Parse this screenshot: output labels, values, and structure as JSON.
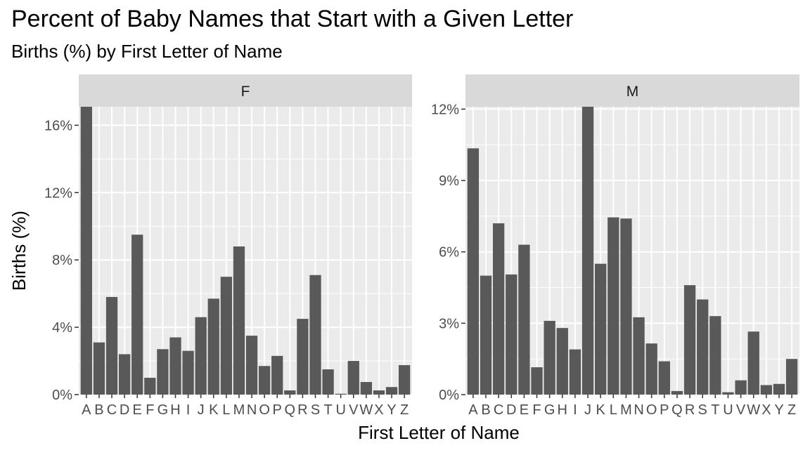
{
  "chart_data": {
    "type": "bar",
    "title": "Percent of Baby Names that Start with a Given Letter",
    "subtitle": "Births (%) by First Letter of Name",
    "xlabel": "First Letter of Name",
    "ylabel": "Births (%)",
    "categories": [
      "A",
      "B",
      "C",
      "D",
      "E",
      "F",
      "G",
      "H",
      "I",
      "J",
      "K",
      "L",
      "M",
      "N",
      "O",
      "P",
      "Q",
      "R",
      "S",
      "T",
      "U",
      "V",
      "W",
      "X",
      "Y",
      "Z"
    ],
    "facets": [
      {
        "name": "F",
        "ylim": [
          0,
          17.1
        ],
        "y_ticks": [
          0,
          4,
          8,
          12,
          16
        ],
        "y_tick_labels": [
          "0%",
          "4%",
          "8%",
          "12%",
          "16%"
        ],
        "values": [
          17.1,
          3.1,
          5.8,
          2.4,
          9.5,
          1.0,
          2.7,
          3.4,
          2.6,
          4.6,
          5.7,
          7.0,
          8.8,
          3.5,
          1.7,
          2.3,
          0.25,
          4.5,
          7.1,
          1.5,
          0.05,
          2.0,
          0.75,
          0.25,
          0.45,
          1.75
        ]
      },
      {
        "name": "M",
        "ylim": [
          0,
          12.1
        ],
        "y_ticks": [
          0,
          3,
          6,
          9,
          12
        ],
        "y_tick_labels": [
          "0%",
          "3%",
          "6%",
          "9%",
          "12%"
        ],
        "values": [
          10.35,
          5.0,
          7.2,
          5.05,
          6.3,
          1.15,
          3.1,
          2.8,
          1.9,
          12.1,
          5.5,
          7.45,
          7.4,
          3.25,
          2.15,
          1.4,
          0.15,
          4.6,
          4.0,
          3.3,
          0.1,
          0.6,
          2.65,
          0.4,
          0.45,
          1.5
        ]
      }
    ],
    "grid": true,
    "bar_color": "#595959",
    "panel_background": "#ebebeb",
    "strip_background": "#d9d9d9"
  }
}
